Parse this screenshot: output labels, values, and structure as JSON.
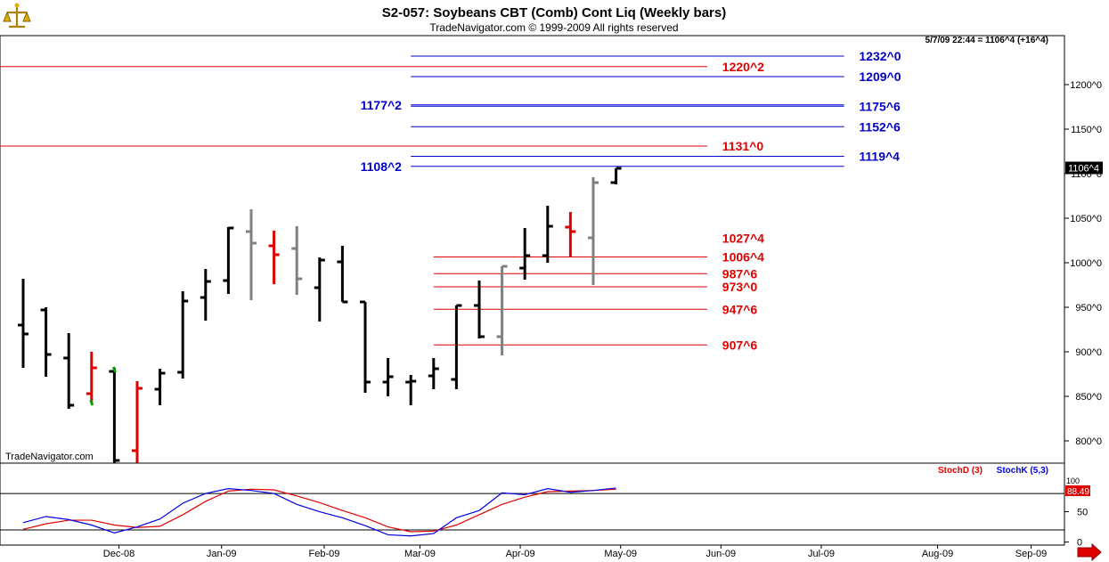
{
  "window": {
    "title": "S2-057:  Soybeans CBT (Comb) Cont Liq  (Weekly bars)",
    "copyright": "TradeNavigator.com © 1999-2009 All rights reserved",
    "watermark": "TradeNavigator.com",
    "status": "5/7/09 22:44 = 1106^4 (+16^4)",
    "logo_icon": "scale-icon",
    "scroll_icon": "arrow-right-icon"
  },
  "colors": {
    "bar_black": "#000000",
    "bar_gray": "#808080",
    "bar_red": "#e00000",
    "green_tick": "#00a000",
    "level_blue": "#0000c8",
    "level_red": "#e00000",
    "stochD": "#e00000",
    "stochK": "#0000e0",
    "grid": "#000000"
  },
  "chart_data": [
    {
      "type": "ohlc",
      "title": "S2-057:  Soybeans CBT (Comb) Cont Liq  (Weekly bars)",
      "ylim": [
        775,
        1255
      ],
      "y_ticks": [
        {
          "value": 800,
          "label": "800^0"
        },
        {
          "value": 850,
          "label": "850^0"
        },
        {
          "value": 900,
          "label": "900^0"
        },
        {
          "value": 950,
          "label": "950^0"
        },
        {
          "value": 1000,
          "label": "1000^0"
        },
        {
          "value": 1050,
          "label": "1050^0"
        },
        {
          "value": 1100,
          "label": "1100^0"
        },
        {
          "value": 1150,
          "label": "1150^0"
        },
        {
          "value": 1200,
          "label": "1200^0"
        }
      ],
      "last_price": {
        "value": 1106.5,
        "label": "1106^4"
      },
      "bars": [
        {
          "idx": 0,
          "h": 982,
          "l": 882,
          "o": 930,
          "c": 920,
          "color": "black"
        },
        {
          "idx": 1,
          "h": 950,
          "l": 872,
          "o": 947,
          "c": 897,
          "color": "black"
        },
        {
          "idx": 2,
          "h": 921,
          "l": 836,
          "o": 893,
          "c": 840,
          "color": "black"
        },
        {
          "idx": 3,
          "h": 900,
          "l": 843,
          "o": 853,
          "c": 882,
          "color": "red"
        },
        {
          "idx": 4,
          "h": 882,
          "l": 775,
          "o": 878,
          "c": 778,
          "color": "black"
        },
        {
          "idx": 5,
          "h": 867,
          "l": 775,
          "o": 789,
          "c": 859,
          "color": "red"
        },
        {
          "idx": 6,
          "h": 881,
          "l": 840,
          "o": 858,
          "c": 876,
          "color": "black"
        },
        {
          "idx": 7,
          "h": 968,
          "l": 870,
          "o": 877,
          "c": 957,
          "color": "black"
        },
        {
          "idx": 8,
          "h": 993,
          "l": 935,
          "o": 961,
          "c": 979,
          "color": "black"
        },
        {
          "idx": 9,
          "h": 1040,
          "l": 965,
          "o": 980,
          "c": 1039,
          "color": "black"
        },
        {
          "idx": 10,
          "h": 1060,
          "l": 958,
          "o": 1035,
          "c": 1022,
          "color": "gray"
        },
        {
          "idx": 11,
          "h": 1036,
          "l": 976,
          "o": 1019,
          "c": 1009,
          "color": "red"
        },
        {
          "idx": 12,
          "h": 1041,
          "l": 964,
          "o": 1016,
          "c": 982,
          "color": "gray"
        },
        {
          "idx": 13,
          "h": 1006,
          "l": 934,
          "o": 972,
          "c": 1003,
          "color": "black"
        },
        {
          "idx": 14,
          "h": 1019,
          "l": 956,
          "o": 1001,
          "c": 956,
          "color": "black"
        },
        {
          "idx": 15,
          "h": 956,
          "l": 854,
          "o": 956,
          "c": 866,
          "color": "black"
        },
        {
          "idx": 16,
          "h": 893,
          "l": 850,
          "o": 866,
          "c": 872,
          "color": "black"
        },
        {
          "idx": 17,
          "h": 874,
          "l": 840,
          "o": 866,
          "c": 867,
          "color": "black"
        },
        {
          "idx": 18,
          "h": 893,
          "l": 858,
          "o": 873,
          "c": 881,
          "color": "black"
        },
        {
          "idx": 19,
          "h": 952,
          "l": 858,
          "o": 869,
          "c": 952,
          "color": "black"
        },
        {
          "idx": 20,
          "h": 980,
          "l": 915,
          "o": 952,
          "c": 917,
          "color": "black"
        },
        {
          "idx": 21,
          "h": 996,
          "l": 896,
          "o": 917,
          "c": 996,
          "color": "gray"
        },
        {
          "idx": 22,
          "h": 1039,
          "l": 981,
          "o": 994,
          "c": 1008,
          "color": "black"
        },
        {
          "idx": 23,
          "h": 1064,
          "l": 1000,
          "o": 1008,
          "c": 1041,
          "color": "black"
        },
        {
          "idx": 24,
          "h": 1057,
          "l": 1006,
          "o": 1040,
          "c": 1035,
          "color": "red"
        },
        {
          "idx": 25,
          "h": 1096,
          "l": 975,
          "o": 1028,
          "c": 1090,
          "color": "gray"
        },
        {
          "idx": 26,
          "h": 1106,
          "l": 1088,
          "o": 1090,
          "c": 1106,
          "color": "black"
        }
      ],
      "green_ticks": [
        {
          "idx": 3,
          "value": 843
        },
        {
          "idx": 4,
          "value": 880
        }
      ],
      "levels": [
        {
          "value": 1232,
          "label": "1232^0",
          "color": "blue",
          "x1": 17.0,
          "x2": 36.0,
          "label_x": 36.5,
          "label_side": "right"
        },
        {
          "value": 1220.25,
          "label": "1220^2",
          "color": "red",
          "x1": -3.0,
          "x2": 30.0,
          "label_x": 30.5,
          "label_side": "right"
        },
        {
          "value": 1209,
          "label": "1209^0",
          "color": "blue",
          "x1": 17.0,
          "x2": 36.0,
          "label_x": 36.5,
          "label_side": "right"
        },
        {
          "value": 1177.25,
          "label": "1177^2",
          "color": "blue",
          "x1": 17.0,
          "x2": 36.0,
          "label_x": 16.6,
          "label_side": "left"
        },
        {
          "value": 1175.75,
          "label": "1175^6",
          "color": "blue",
          "x1": 17.0,
          "x2": 36.0,
          "label_x": 36.5,
          "label_side": "right"
        },
        {
          "value": 1152.75,
          "label": "1152^6",
          "color": "blue",
          "x1": 17.0,
          "x2": 36.0,
          "label_x": 36.5,
          "label_side": "right"
        },
        {
          "value": 1131,
          "label": "1131^0",
          "color": "red",
          "x1": -3.0,
          "x2": 30.0,
          "label_x": 30.5,
          "label_side": "right"
        },
        {
          "value": 1119.5,
          "label": "1119^4",
          "color": "blue",
          "x1": 17.0,
          "x2": 36.0,
          "label_x": 36.5,
          "label_side": "right"
        },
        {
          "value": 1108.25,
          "label": "1108^2",
          "color": "blue",
          "x1": 17.0,
          "x2": 36.0,
          "label_x": 16.6,
          "label_side": "left"
        },
        {
          "value": 1027.5,
          "label": "1027^4",
          "color": "red",
          "x1": 30.5,
          "x2": 30.5,
          "label_x": 30.5,
          "label_side": "right"
        },
        {
          "value": 1006.5,
          "label": "1006^4",
          "color": "red",
          "x1": 18.0,
          "x2": 30.0,
          "label_x": 30.5,
          "label_side": "right"
        },
        {
          "value": 987.75,
          "label": "987^6",
          "color": "red",
          "x1": 18.0,
          "x2": 30.0,
          "label_x": 30.5,
          "label_side": "right"
        },
        {
          "value": 973,
          "label": "973^0",
          "color": "red",
          "x1": 18.0,
          "x2": 30.0,
          "label_x": 30.5,
          "label_side": "right"
        },
        {
          "value": 947.75,
          "label": "947^6",
          "color": "red",
          "x1": 18.0,
          "x2": 30.0,
          "label_x": 30.5,
          "label_side": "right"
        },
        {
          "value": 907.75,
          "label": "907^6",
          "color": "red",
          "x1": 18.0,
          "x2": 30.0,
          "label_x": 30.5,
          "label_side": "right"
        }
      ]
    },
    {
      "type": "line",
      "title": "",
      "ylim": [
        -5,
        130
      ],
      "y_ticks": [
        {
          "value": 0,
          "label": "0"
        },
        {
          "value": 50,
          "label": "50"
        }
      ],
      "gridlines": [
        20,
        80
      ],
      "last_value_label": "88.49",
      "last_value_top_label": "100",
      "series": [
        {
          "name": "StochD (3)",
          "color": "red",
          "values": [
            21,
            30,
            36,
            36,
            28,
            24,
            26,
            45,
            67,
            84,
            87,
            86,
            76,
            65,
            52,
            40,
            25,
            17,
            18,
            28,
            45,
            62,
            74,
            83,
            84,
            85,
            87
          ]
        },
        {
          "name": "StochK (5,3)",
          "color": "blue",
          "values": [
            32,
            42,
            37,
            28,
            15,
            25,
            38,
            64,
            80,
            88,
            85,
            80,
            62,
            50,
            40,
            27,
            12,
            10,
            14,
            40,
            52,
            81,
            78,
            88,
            82,
            85,
            89
          ]
        }
      ]
    }
  ],
  "x_axis": {
    "labels": [
      {
        "label": "Dec-08",
        "pos": 4.2
      },
      {
        "label": "Jan-09",
        "pos": 8.7
      },
      {
        "label": "Feb-09",
        "pos": 13.2
      },
      {
        "label": "Mar-09",
        "pos": 17.4
      },
      {
        "label": "Apr-09",
        "pos": 21.8
      },
      {
        "label": "May-09",
        "pos": 26.2
      },
      {
        "label": "Jun-09",
        "pos": 30.6
      },
      {
        "label": "Jul-09",
        "pos": 35.0
      },
      {
        "label": "Aug-09",
        "pos": 40.1
      },
      {
        "label": "Sep-09",
        "pos": 44.2
      }
    ]
  }
}
